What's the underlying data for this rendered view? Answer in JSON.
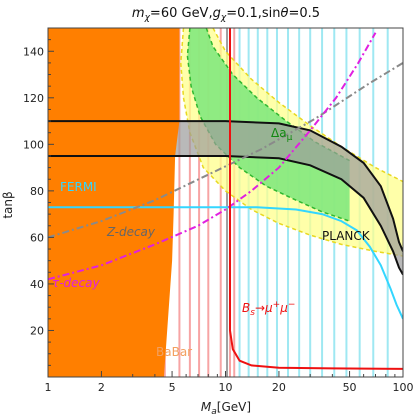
{
  "chart_data": {
    "type": "area",
    "title": "m_χ=60 GeV,g_χ=0.1,sinθ=0.5",
    "title_parts": {
      "m": "m",
      "chi1": "χ",
      "eq1": "=60 GeV,",
      "g": "g",
      "chi2": "χ",
      "eq2": "=0.1,sin",
      "theta": "θ",
      "eq3": "=0.5"
    },
    "xlabel": "M_a[GeV]",
    "xlabel_parts": {
      "M": "M",
      "a": "a",
      "unit": "[GeV]"
    },
    "ylabel": "tanβ",
    "x_scale": "log",
    "xlim": [
      1,
      100
    ],
    "ylim": [
      0,
      150
    ],
    "x_ticks": [
      1,
      2,
      5,
      10,
      20,
      50,
      100
    ],
    "x_tick_labels": [
      "1",
      "2",
      "5",
      "10",
      "20",
      "50",
      "100"
    ],
    "y_ticks": [
      20,
      40,
      60,
      80,
      100,
      120,
      140
    ],
    "y_tick_labels": [
      "20",
      "40",
      "60",
      "80",
      "100",
      "120",
      "140"
    ],
    "grid": false,
    "regions": {
      "babar": {
        "label": "BaBar",
        "color": "#ff7f00",
        "points": [
          [
            1,
            0
          ],
          [
            1,
            150
          ],
          [
            5.5,
            150
          ],
          [
            5.5,
            110
          ],
          [
            5.2,
            95
          ],
          [
            5.1,
            70
          ],
          [
            5.0,
            50
          ],
          [
            4.5,
            0
          ]
        ]
      },
      "planck_band": {
        "label": "PLANCK",
        "color": "#9b9b9b",
        "upper": [
          [
            1,
            110
          ],
          [
            10,
            110
          ],
          [
            20,
            109
          ],
          [
            30,
            106
          ],
          [
            45,
            99
          ],
          [
            60,
            92
          ],
          [
            75,
            82
          ],
          [
            88,
            68
          ],
          [
            95,
            58
          ],
          [
            100,
            54
          ]
        ],
        "lower": [
          [
            1,
            95
          ],
          [
            10,
            95
          ],
          [
            20,
            94
          ],
          [
            30,
            91
          ],
          [
            45,
            85
          ],
          [
            60,
            77
          ],
          [
            75,
            65
          ],
          [
            88,
            54
          ],
          [
            95,
            47
          ],
          [
            100,
            44
          ]
        ]
      },
      "g2_yellow": {
        "label": "Δa_μ",
        "color": "#ffff8c",
        "left": [
          [
            5.8,
            150
          ],
          [
            5.6,
            135
          ],
          [
            5.8,
            120
          ],
          [
            6.3,
            105
          ],
          [
            7.5,
            90
          ],
          [
            10,
            80
          ],
          [
            14,
            72
          ],
          [
            20,
            66
          ],
          [
            30,
            61
          ],
          [
            45,
            57
          ],
          [
            70,
            54
          ],
          [
            100,
            52
          ]
        ],
        "right": [
          [
            8.5,
            150
          ],
          [
            10,
            140
          ],
          [
            14,
            128
          ],
          [
            20,
            118
          ],
          [
            30,
            108
          ],
          [
            45,
            99
          ],
          [
            70,
            90
          ],
          [
            100,
            84
          ]
        ]
      },
      "g2_green": {
        "label": "Δa_μ",
        "color": "#7be87b",
        "left": [
          [
            6.3,
            150
          ],
          [
            6.1,
            138
          ],
          [
            6.4,
            125
          ],
          [
            7.2,
            112
          ],
          [
            8.8,
            100
          ],
          [
            12,
            90
          ],
          [
            17,
            82
          ],
          [
            25,
            76
          ],
          [
            35,
            71
          ],
          [
            50,
            67
          ]
        ],
        "right": [
          [
            7.8,
            150
          ],
          [
            8.5,
            142
          ],
          [
            11,
            130
          ],
          [
            15,
            120
          ],
          [
            22,
            110
          ],
          [
            32,
            101
          ],
          [
            50,
            93
          ]
        ]
      }
    },
    "lines": {
      "fermi": {
        "label": "FERMI",
        "color": "#33d6ff",
        "points": [
          [
            1,
            73
          ],
          [
            15,
            73
          ],
          [
            25,
            72
          ],
          [
            35,
            70
          ],
          [
            45,
            67
          ],
          [
            55,
            63
          ],
          [
            65,
            56
          ],
          [
            75,
            48
          ],
          [
            85,
            38
          ],
          [
            92,
            31
          ],
          [
            100,
            25
          ]
        ]
      },
      "z_decay": {
        "label": "Z-decay",
        "color": "#8a8a8a",
        "points": [
          [
            1,
            60
          ],
          [
            2,
            67
          ],
          [
            4,
            76
          ],
          [
            8,
            87
          ],
          [
            16,
            98
          ],
          [
            32,
            111
          ],
          [
            64,
            126
          ],
          [
            100,
            135
          ]
        ]
      },
      "tau_decay": {
        "label": "τ-decay",
        "color": "#e020e0",
        "points": [
          [
            1,
            42
          ],
          [
            2,
            48
          ],
          [
            4,
            57
          ],
          [
            7,
            65
          ],
          [
            10,
            72
          ],
          [
            14,
            80
          ],
          [
            20,
            90
          ],
          [
            30,
            106
          ],
          [
            42,
            120
          ],
          [
            56,
            135
          ],
          [
            70,
            148
          ]
        ]
      },
      "bs_mumu": {
        "label": "B_s→μ⁺μ⁻",
        "color": "#ee1111",
        "points": [
          [
            10.6,
            150
          ],
          [
            10.6,
            20
          ],
          [
            11,
            12
          ],
          [
            12,
            7
          ],
          [
            14,
            5
          ],
          [
            20,
            4
          ],
          [
            40,
            3.7
          ],
          [
            100,
            3.5
          ]
        ]
      }
    },
    "vertical_lines": {
      "cyan": {
        "color": "#9fe8f2",
        "x": [
          1.08,
          1.17,
          1.3,
          1.42,
          1.55,
          1.7,
          1.86,
          2.05,
          2.25,
          2.5,
          2.8,
          3.1,
          3.5,
          3.95,
          4.45,
          12,
          13.5,
          15.2,
          17.2,
          19.5,
          22.5,
          26,
          30,
          35,
          41,
          48,
          57,
          68,
          82
        ]
      },
      "pink": {
        "color": "#f7a4a4",
        "x": [
          4.55,
          5.5,
          6.3,
          7.1,
          8.0,
          9.4,
          10.6,
          11.2
        ]
      },
      "grey": {
        "color": "#a0a0a0",
        "x": [
          10.2
        ]
      }
    },
    "annotations": {
      "fermi": "FERMI",
      "z_decay": "Z-decay",
      "tau_decay": "τ-decay",
      "planck": "PLANCK",
      "delta_a": "Δa",
      "delta_sub": "μ",
      "bs": "B",
      "bs_sub": "s",
      "bs_arrow": "→μ",
      "bs_sup1": "+",
      "bs_mu2": "μ",
      "bs_sup2": "−",
      "babar": "BaBar"
    },
    "colors": {
      "babar": "#ff7f00",
      "planck_fill": "#9b9b9b",
      "yellow": "#ffff8c",
      "green": "#7be87b",
      "fermi": "#33d6ff",
      "z_decay": "#8a8a8a",
      "tau_decay": "#e020e0",
      "bs": "#ee1111"
    }
  }
}
